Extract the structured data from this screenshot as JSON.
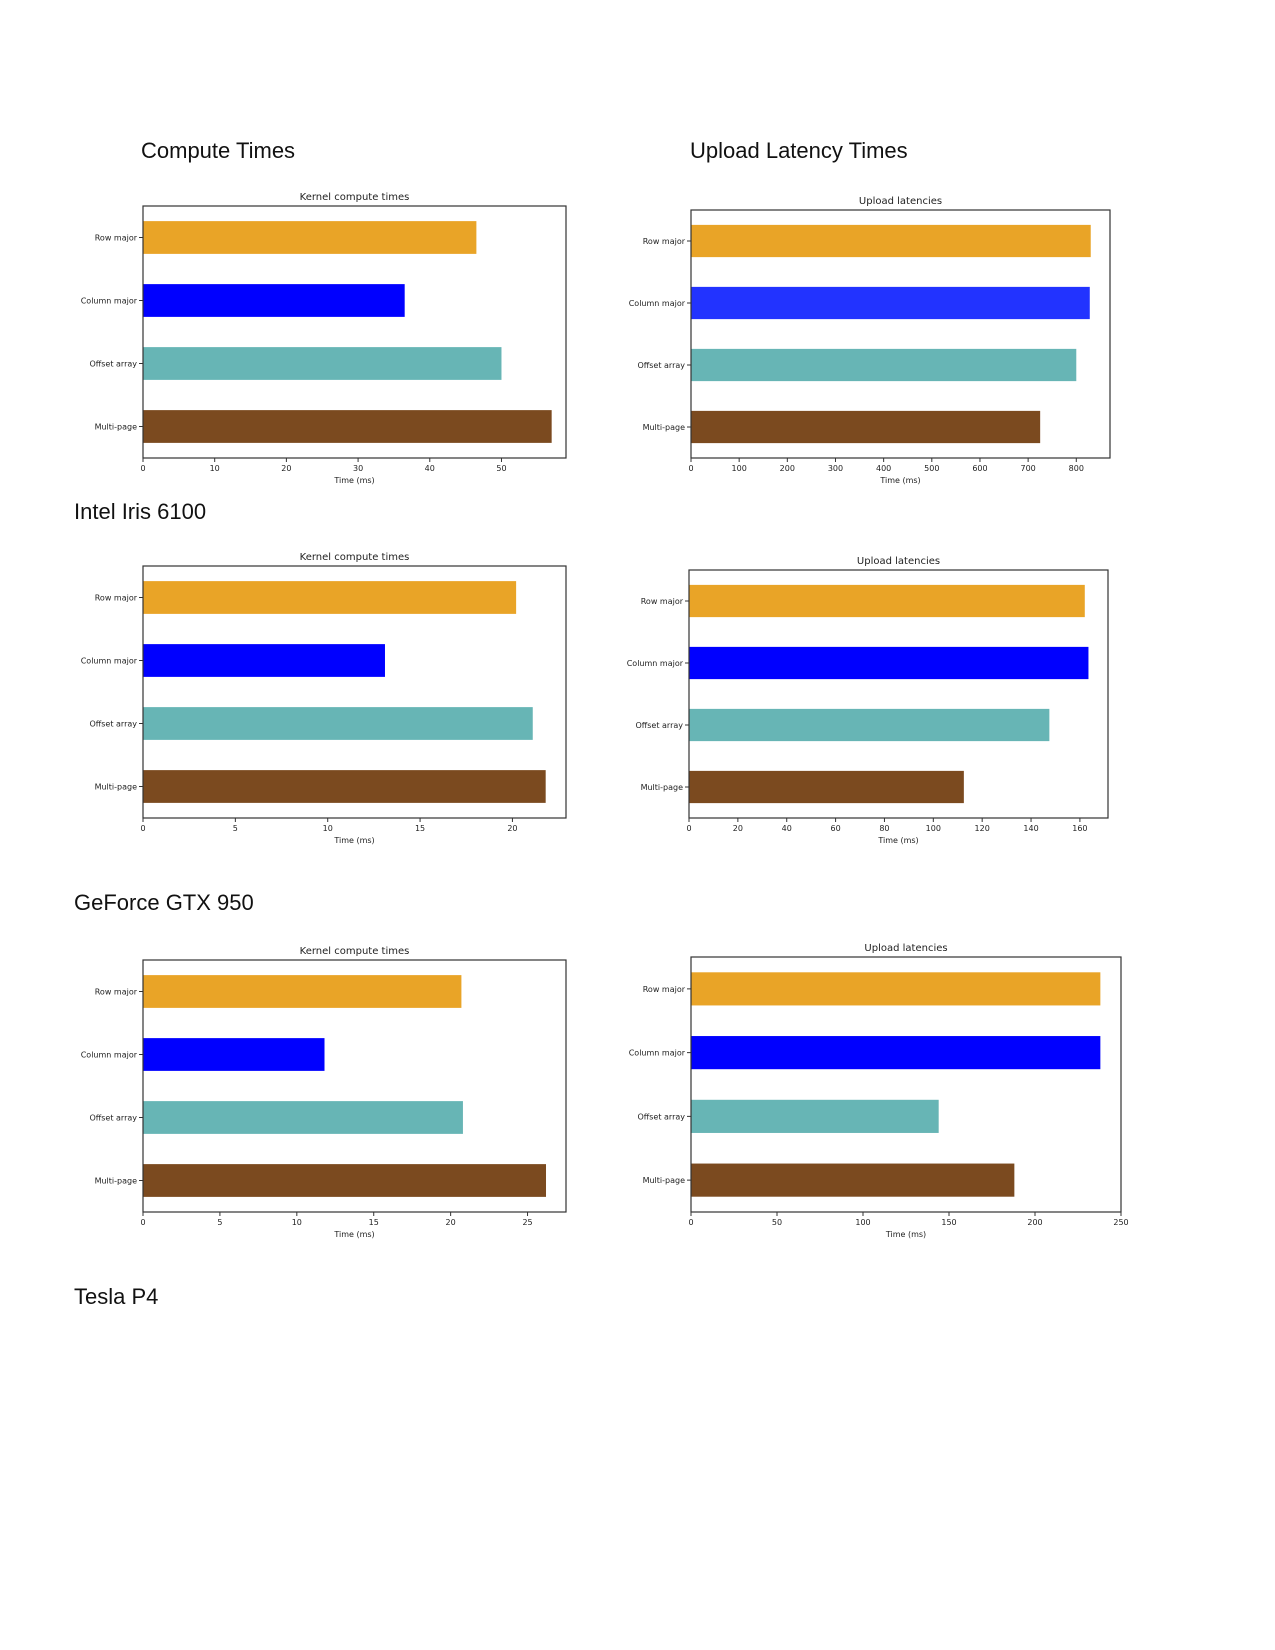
{
  "headings": {
    "compute_times": "Compute Times",
    "upload_latency_times": "Upload Latency Times",
    "intel": "Intel Iris 6100",
    "geforce": "GeForce GTX 950",
    "tesla": "Tesla P4"
  },
  "chart_data": [
    {
      "type": "bar",
      "orientation": "horizontal",
      "title": "Kernel compute times",
      "xlabel": "Time (ms)",
      "categories": [
        "Row major",
        "Column major",
        "Offset array",
        "Multi-page"
      ],
      "values": [
        46.5,
        36.5,
        50,
        57
      ],
      "colors": [
        "#E9A427",
        "#0000FF",
        "#67B5B5",
        "#7B4A1F"
      ],
      "xlim": [
        0,
        59
      ],
      "xticks": [
        0,
        10,
        20,
        30,
        40,
        50
      ]
    },
    {
      "type": "bar",
      "orientation": "horizontal",
      "title": "Upload latencies",
      "xlabel": "Time (ms)",
      "categories": [
        "Row major",
        "Column major",
        "Offset array",
        "Multi-page"
      ],
      "values": [
        830,
        828,
        800,
        725
      ],
      "colors": [
        "#E9A427",
        "#2233FF",
        "#67B5B5",
        "#7B4A1F"
      ],
      "xlim": [
        0,
        870
      ],
      "xticks": [
        0,
        100,
        200,
        300,
        400,
        500,
        600,
        700,
        800
      ]
    },
    {
      "type": "bar",
      "orientation": "horizontal",
      "title": "Kernel compute times",
      "xlabel": "Time (ms)",
      "categories": [
        "Row major",
        "Column major",
        "Offset array",
        "Multi-page"
      ],
      "values": [
        20.2,
        13.1,
        21.1,
        21.8
      ],
      "colors": [
        "#E9A427",
        "#0000FF",
        "#67B5B5",
        "#7B4A1F"
      ],
      "xlim": [
        0,
        22.9
      ],
      "xticks": [
        0,
        5,
        10,
        15,
        20
      ]
    },
    {
      "type": "bar",
      "orientation": "horizontal",
      "title": "Upload latencies",
      "xlabel": "Time (ms)",
      "categories": [
        "Row major",
        "Column major",
        "Offset array",
        "Multi-page"
      ],
      "values": [
        162,
        163.5,
        147.5,
        112.5
      ],
      "colors": [
        "#E9A427",
        "#0000FF",
        "#67B5B5",
        "#7B4A1F"
      ],
      "xlim": [
        0,
        171.5
      ],
      "xticks": [
        0,
        20,
        40,
        60,
        80,
        100,
        120,
        140,
        160
      ]
    },
    {
      "type": "bar",
      "orientation": "horizontal",
      "title": "Kernel compute times",
      "xlabel": "Time (ms)",
      "categories": [
        "Row major",
        "Column major",
        "Offset array",
        "Multi-page"
      ],
      "values": [
        20.7,
        11.8,
        20.8,
        26.2
      ],
      "colors": [
        "#E9A427",
        "#0000FF",
        "#67B5B5",
        "#7B4A1F"
      ],
      "xlim": [
        0,
        27.5
      ],
      "xticks": [
        0,
        5,
        10,
        15,
        20,
        25
      ]
    },
    {
      "type": "bar",
      "orientation": "horizontal",
      "title": "Upload latencies",
      "xlabel": "Time (ms)",
      "categories": [
        "Row major",
        "Column major",
        "Offset array",
        "Multi-page"
      ],
      "values": [
        238,
        238,
        144,
        188
      ],
      "colors": [
        "#E9A427",
        "#0000FF",
        "#67B5B5",
        "#7B4A1F"
      ],
      "xlim": [
        0,
        250
      ],
      "xticks": [
        0,
        50,
        100,
        150,
        200,
        250
      ]
    }
  ]
}
